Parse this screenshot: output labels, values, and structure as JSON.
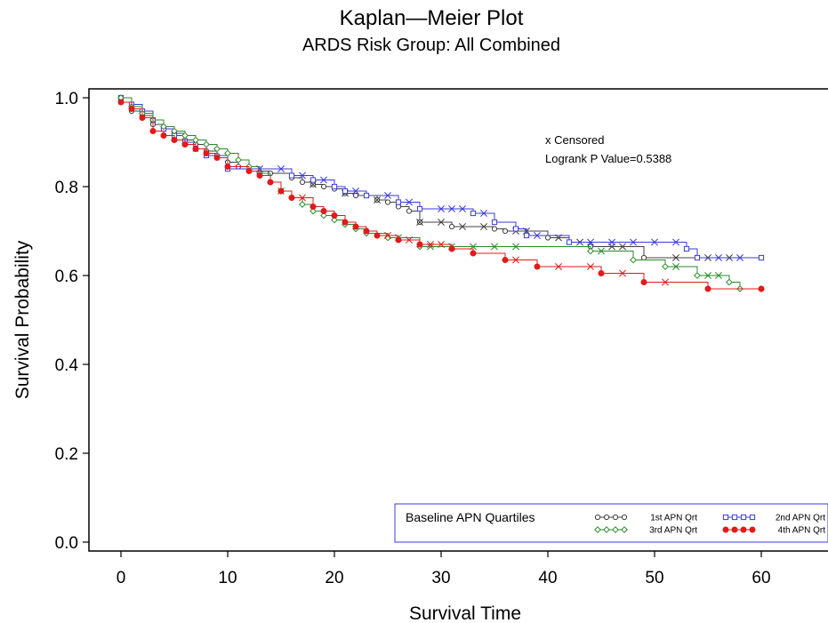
{
  "chart_data": {
    "type": "line",
    "title": "Kaplan—Meier Plot",
    "subtitle": "ARDS Risk Group: All Combined",
    "xlabel": "Survival Time",
    "ylabel": "Survival Probability",
    "xlim": [
      -3,
      67
    ],
    "ylim": [
      -0.02,
      1.02
    ],
    "x_ticks": [
      0,
      10,
      20,
      30,
      40,
      50,
      60
    ],
    "x_tick_labels": [
      "0",
      "10",
      "20",
      "30",
      "40",
      "50",
      "60"
    ],
    "y_ticks": [
      0.0,
      0.2,
      0.4,
      0.6,
      0.8,
      1.0
    ],
    "y_tick_labels": [
      "0.0",
      "0.2",
      "0.4",
      "0.6",
      "0.8",
      "1.0"
    ],
    "grid": false,
    "step": true,
    "annotations": [
      "x Censored",
      "Logrank P Value=0.5388"
    ],
    "legend": {
      "title": "Baseline APN Quartiles",
      "placement": "bottom-right"
    },
    "series": [
      {
        "name": "1st APN Qrt",
        "color": "#404040",
        "marker": "open-circle",
        "x": [
          0,
          1,
          2,
          3,
          4,
          5,
          6,
          7,
          8,
          9,
          10,
          11,
          12,
          14,
          16,
          17,
          18,
          19,
          20,
          21,
          22,
          24,
          25,
          26,
          27,
          28,
          31,
          35,
          36,
          40,
          42,
          44,
          49
        ],
        "y": [
          1.0,
          0.97,
          0.96,
          0.94,
          0.93,
          0.92,
          0.905,
          0.895,
          0.88,
          0.87,
          0.855,
          0.845,
          0.835,
          0.83,
          0.82,
          0.81,
          0.805,
          0.8,
          0.795,
          0.785,
          0.78,
          0.77,
          0.765,
          0.755,
          0.745,
          0.72,
          0.71,
          0.705,
          0.7,
          0.685,
          0.675,
          0.665,
          0.64
        ],
        "end_x": 60,
        "censored_x": [
          18,
          21,
          24,
          28,
          30,
          32,
          34,
          37,
          38,
          41,
          43,
          46,
          47,
          52,
          55,
          57
        ]
      },
      {
        "name": "2nd APN Qrt",
        "color": "#3a3adf",
        "marker": "open-square",
        "x": [
          0,
          1,
          2,
          3,
          4,
          5,
          6,
          7,
          8,
          10,
          16,
          18,
          20,
          21,
          23,
          26,
          28,
          33,
          35,
          37,
          38,
          42,
          53,
          54
        ],
        "y": [
          1.0,
          0.985,
          0.97,
          0.95,
          0.93,
          0.915,
          0.9,
          0.885,
          0.87,
          0.84,
          0.825,
          0.815,
          0.8,
          0.79,
          0.78,
          0.765,
          0.75,
          0.74,
          0.72,
          0.705,
          0.69,
          0.675,
          0.66,
          0.64
        ],
        "end_x": 60,
        "censored_x": [
          13,
          15,
          17,
          19,
          22,
          25,
          27,
          30,
          31,
          32,
          34,
          39,
          44,
          46,
          48,
          50,
          52,
          56,
          58
        ]
      },
      {
        "name": "3rd APN Qrt",
        "color": "#2a8a2a",
        "marker": "open-diamond",
        "x": [
          0,
          1,
          2,
          3,
          4,
          5,
          6,
          7,
          8,
          9,
          10,
          11,
          12,
          13,
          14,
          15,
          16,
          17,
          18,
          19,
          20,
          21,
          22,
          23,
          25,
          28,
          44,
          48,
          51,
          54,
          57,
          58
        ],
        "y": [
          1.0,
          0.98,
          0.965,
          0.95,
          0.935,
          0.925,
          0.915,
          0.905,
          0.895,
          0.885,
          0.875,
          0.86,
          0.845,
          0.83,
          0.81,
          0.79,
          0.775,
          0.76,
          0.745,
          0.735,
          0.725,
          0.715,
          0.705,
          0.695,
          0.685,
          0.665,
          0.655,
          0.635,
          0.62,
          0.6,
          0.585,
          0.57
        ],
        "end_x": 60,
        "censored_x": [
          15,
          26,
          29,
          31,
          33,
          35,
          37,
          45,
          52,
          55,
          56
        ]
      },
      {
        "name": "4th APN Qrt",
        "color": "#e11a1a",
        "marker": "filled-circle",
        "x": [
          0,
          1,
          2,
          3,
          4,
          5,
          6,
          7,
          8,
          9,
          10,
          12,
          13,
          14,
          15,
          16,
          18,
          19,
          20,
          21,
          22,
          23,
          24,
          26,
          28,
          31,
          33,
          36,
          39,
          45,
          49,
          55
        ],
        "y": [
          0.99,
          0.975,
          0.955,
          0.925,
          0.915,
          0.905,
          0.895,
          0.885,
          0.875,
          0.865,
          0.845,
          0.835,
          0.825,
          0.81,
          0.79,
          0.775,
          0.755,
          0.745,
          0.735,
          0.72,
          0.71,
          0.7,
          0.69,
          0.68,
          0.67,
          0.66,
          0.65,
          0.635,
          0.62,
          0.605,
          0.585,
          0.57
        ],
        "end_x": 60,
        "censored_x": [
          17,
          25,
          27,
          29,
          30,
          37,
          41,
          44,
          47,
          51
        ]
      }
    ]
  }
}
